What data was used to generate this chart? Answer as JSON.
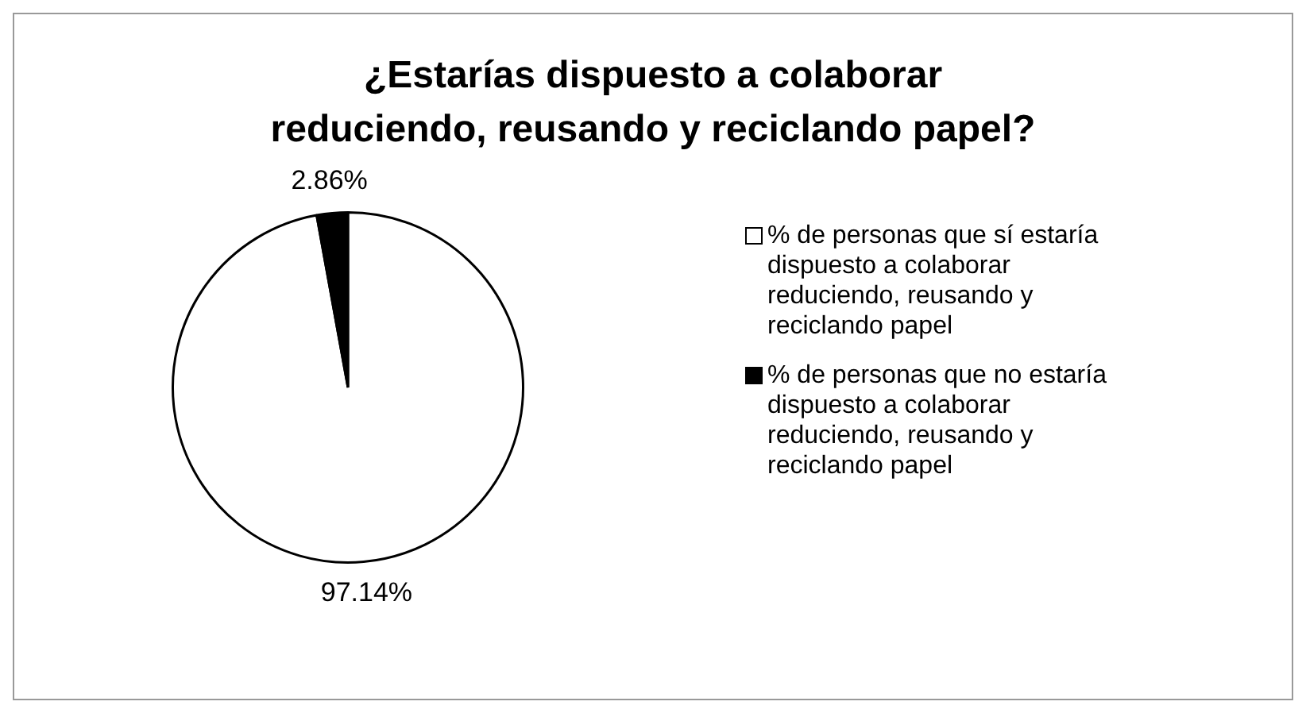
{
  "chart_data": {
    "type": "pie",
    "title": "¿Estarías dispuesto a colaborar reduciendo, reusando y reciclando papel?",
    "categories": [
      "% de personas que sí estaría dispuesto a colaborar reduciendo, reusando y reciclando papel",
      "% de personas que no estaría dispuesto a colaborar reduciendo, reusando y reciclando papel"
    ],
    "values": [
      97.14,
      2.86
    ],
    "value_labels": [
      "97.14%",
      "2.86%"
    ],
    "colors": [
      "#ffffff",
      "#000000"
    ],
    "legend": "right"
  }
}
